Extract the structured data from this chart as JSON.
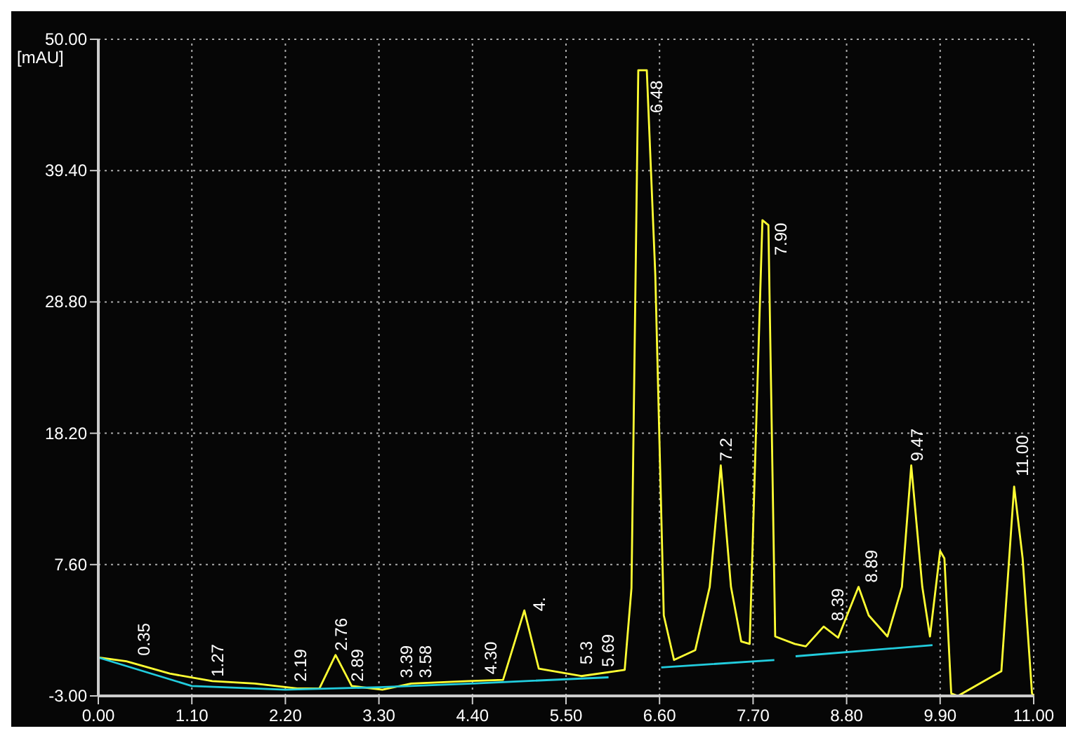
{
  "chart_data": {
    "type": "line",
    "ylabel": "[mAU]",
    "xlim": [
      0,
      11
    ],
    "ylim": [
      -3,
      50
    ],
    "xticks": [
      {
        "value": 0,
        "label": "0.00"
      },
      {
        "value": 1.1,
        "label": "1.10"
      },
      {
        "value": 2.2,
        "label": "2.20"
      },
      {
        "value": 3.3,
        "label": "3.30"
      },
      {
        "value": 4.4,
        "label": "4.40"
      },
      {
        "value": 5.5,
        "label": "5.50"
      },
      {
        "value": 6.6,
        "label": "6.60"
      },
      {
        "value": 7.7,
        "label": "7.70"
      },
      {
        "value": 8.8,
        "label": "8.80"
      },
      {
        "value": 9.9,
        "label": "9.90"
      },
      {
        "value": 11,
        "label": "11.00"
      }
    ],
    "yticks": [
      {
        "value": -3,
        "label": "-3.00"
      },
      {
        "value": 7.6,
        "label": "7.60"
      },
      {
        "value": 18.2,
        "label": "18.20"
      },
      {
        "value": 28.8,
        "label": "28.80"
      },
      {
        "value": 39.4,
        "label": "39.40"
      },
      {
        "value": 50,
        "label": "50.00"
      }
    ],
    "grid": true,
    "line_style": "solid",
    "marker": "none",
    "series": [
      {
        "color": "#ffff33",
        "x": [
          0,
          0.33,
          0.84,
          1.34,
          1.84,
          2.34,
          2.6,
          2.79,
          2.98,
          3.34,
          3.68,
          4.35,
          4.76,
          5.01,
          5.18,
          5.68,
          6.19,
          6.27,
          6.35,
          6.45,
          6.55,
          6.65,
          6.77,
          7.02,
          7.19,
          7.32,
          7.44,
          7.56,
          7.66,
          7.74,
          7.81,
          7.88,
          7.96,
          8.19,
          8.32,
          8.53,
          8.7,
          8.94,
          9.06,
          9.28,
          9.45,
          9.56,
          9.69,
          9.78,
          9.9,
          9.95,
          10.03,
          10.11,
          10.62,
          10.77,
          10.87,
          10.98,
          11
        ],
        "values": [
          0.1,
          -0.2,
          -1.2,
          -1.8,
          -2,
          -2.4,
          -2.4,
          0.3,
          -2.2,
          -2.5,
          -2,
          -1.8,
          -1.7,
          3.9,
          -0.8,
          -1.4,
          -0.9,
          5.7,
          47.5,
          47.5,
          31,
          3.5,
          -0.1,
          0.7,
          5.8,
          15.6,
          5.8,
          1.4,
          1.2,
          19.6,
          35.4,
          35,
          1.8,
          1.2,
          1,
          2.6,
          1.7,
          5.8,
          3.5,
          1.8,
          5.8,
          15.6,
          5.8,
          1.8,
          8.7,
          8.1,
          -2.8,
          -3,
          -1,
          13.9,
          8.1,
          -2.8,
          -3
        ]
      },
      {
        "color": "#22ccdd",
        "x": [
          0,
          1.1,
          2.2,
          3.3,
          4.4,
          6.0,
          6.02,
          6.62,
          7.95,
          7.97,
          8.2,
          9.81
        ],
        "values": [
          0.1,
          -2.2,
          -2.5,
          -2.3,
          -2.0,
          -1.5,
          null,
          -0.7,
          -0.1,
          null,
          0.2,
          1.1
        ]
      }
    ],
    "annotations": [
      {
        "text": "0.35",
        "x": 0.47,
        "y": -0.1
      },
      {
        "text": "1.27",
        "x": 1.34,
        "y": -1.8
      },
      {
        "text": "2.19",
        "x": 2.31,
        "y": -2.2
      },
      {
        "text": "2.76",
        "x": 2.79,
        "y": 0.3
      },
      {
        "text": "2.89",
        "x": 2.98,
        "y": -2.2
      },
      {
        "text": "3.39",
        "x": 3.56,
        "y": -1.9
      },
      {
        "text": "3.58",
        "x": 3.78,
        "y": -1.9
      },
      {
        "text": "4.30",
        "x": 4.55,
        "y": -1.6
      },
      {
        "text": "4.",
        "x": 5.12,
        "y": 3.5
      },
      {
        "text": "5.3",
        "x": 5.67,
        "y": -0.8
      },
      {
        "text": "5.69",
        "x": 5.93,
        "y": -1
      },
      {
        "text": "6.48",
        "x": 6.5,
        "y": 43.7
      },
      {
        "text": "7.2",
        "x": 7.32,
        "y": 15.6
      },
      {
        "text": "7.90",
        "x": 7.96,
        "y": 32.2
      },
      {
        "text": "8.39",
        "x": 8.63,
        "y": 2.7
      },
      {
        "text": "8.89",
        "x": 9.03,
        "y": 5.8
      },
      {
        "text": "9.47",
        "x": 9.56,
        "y": 15.6
      },
      {
        "text": "11.00",
        "x": 10.8,
        "y": 14.4
      }
    ]
  }
}
